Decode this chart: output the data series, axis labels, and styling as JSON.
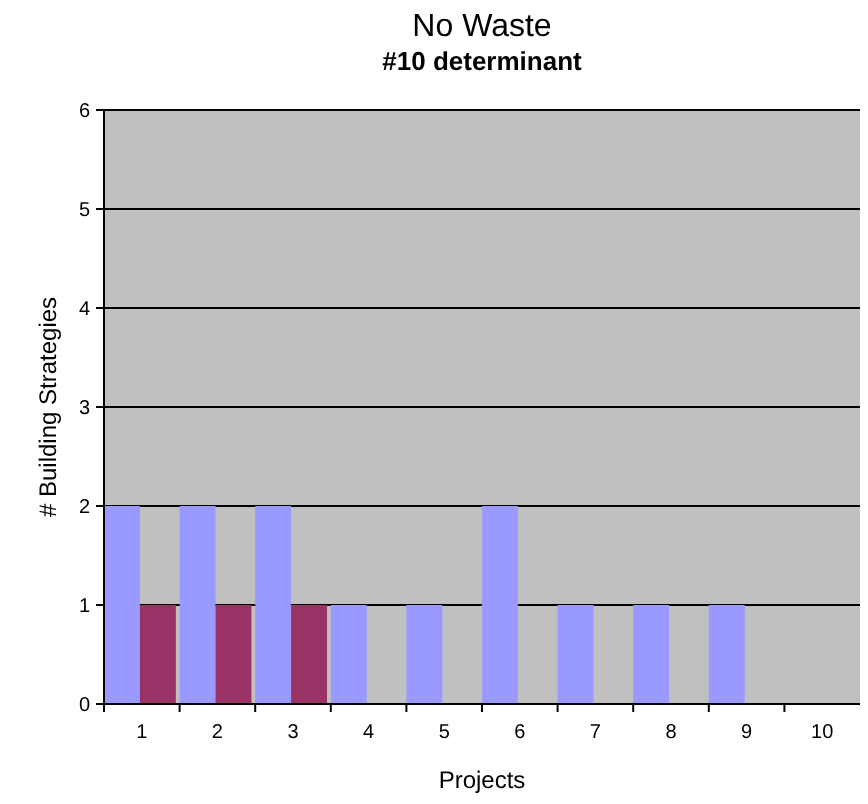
{
  "chart_data": {
    "type": "bar",
    "title": "No Waste",
    "subtitle": "#10 determinant",
    "xlabel": "Projects",
    "ylabel": "# Building Strategies",
    "categories": [
      "1",
      "2",
      "3",
      "4",
      "5",
      "6",
      "7",
      "8",
      "9",
      "10"
    ],
    "series": [
      {
        "color": "#9999ff",
        "values": [
          2,
          2,
          2,
          1,
          1,
          2,
          1,
          1,
          1,
          0
        ]
      },
      {
        "color": "#993366",
        "values": [
          1,
          1,
          1,
          0,
          0,
          0,
          0,
          0,
          0,
          0
        ]
      }
    ],
    "ylim": [
      0,
      6
    ],
    "yticks": [
      0,
      1,
      2,
      3,
      4,
      5,
      6
    ],
    "grid": "y"
  }
}
